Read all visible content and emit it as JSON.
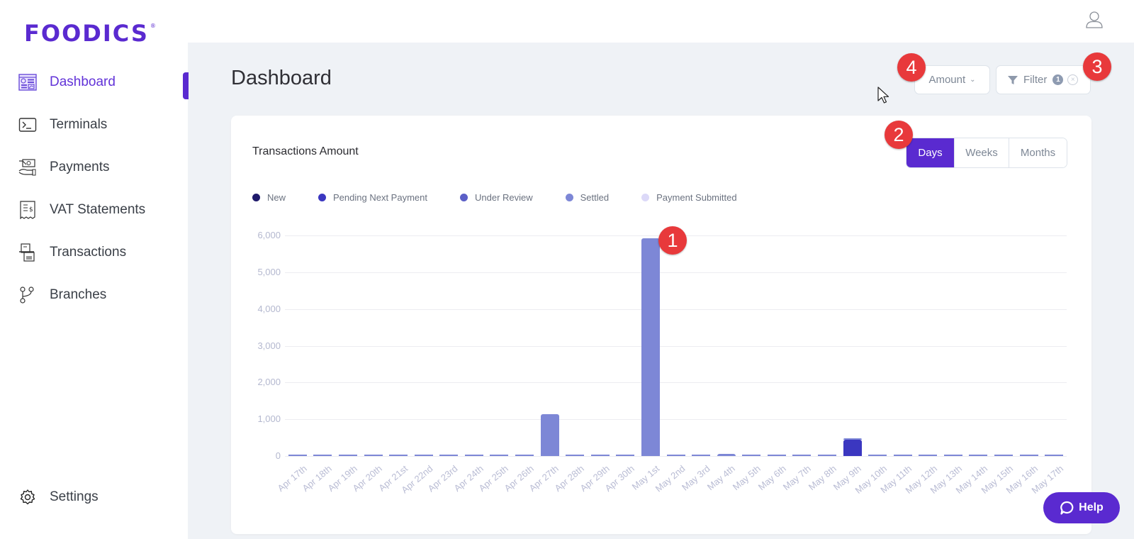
{
  "brand": {
    "name": "FOODICS",
    "mark": "®",
    "color": "#5a2ad0"
  },
  "sidebar": {
    "items": [
      {
        "label": "Dashboard",
        "icon": "dashboard-icon",
        "active": true
      },
      {
        "label": "Terminals",
        "icon": "terminal-icon"
      },
      {
        "label": "Payments",
        "icon": "payments-icon"
      },
      {
        "label": "VAT Statements",
        "icon": "receipt-icon"
      },
      {
        "label": "Transactions",
        "icon": "transactions-icon"
      },
      {
        "label": "Branches",
        "icon": "branches-icon"
      }
    ],
    "footer": {
      "label": "Settings",
      "icon": "gear-icon"
    }
  },
  "header": {
    "user_icon": "user-icon"
  },
  "page": {
    "title": "Dashboard"
  },
  "toolbar": {
    "amount_select": {
      "value": "Amount",
      "icon": "chevron-down-icon"
    },
    "filter": {
      "label": "Filter",
      "count": "1",
      "icon": "funnel-icon",
      "clear_icon": "close-circle-icon"
    }
  },
  "card": {
    "title": "Transactions Amount",
    "granularity": {
      "options": [
        "Days",
        "Weeks",
        "Months"
      ],
      "selected": "Days"
    },
    "legend": [
      {
        "label": "New",
        "color": "#1f1a6b"
      },
      {
        "label": "Pending Next Payment",
        "color": "#3b37c0"
      },
      {
        "label": "Under Review",
        "color": "#5b5fc7"
      },
      {
        "label": "Settled",
        "color": "#7d87d6"
      },
      {
        "label": "Payment Submitted",
        "color": "#dcd9f8"
      }
    ]
  },
  "chart_data": {
    "type": "bar",
    "title": "Transactions Amount",
    "xlabel": "",
    "ylabel": "",
    "ylim": [
      0,
      6000
    ],
    "yticks": [
      "0",
      "1,000",
      "2,000",
      "3,000",
      "4,000",
      "5,000",
      "6,000"
    ],
    "grid": true,
    "legend_position": "top-left",
    "stacked": true,
    "categories": [
      "Apr 17th",
      "Apr 18th",
      "Apr 19th",
      "Apr 20th",
      "Apr 21st",
      "Apr 22nd",
      "Apr 23rd",
      "Apr 24th",
      "Apr 25th",
      "Apr 26th",
      "Apr 27th",
      "Apr 28th",
      "Apr 29th",
      "Apr 30th",
      "May 1st",
      "May 2nd",
      "May 3rd",
      "May 4th",
      "May 5th",
      "May 6th",
      "May 7th",
      "May 8th",
      "May 9th",
      "May 10th",
      "May 11th",
      "May 12th",
      "May 13th",
      "May 14th",
      "May 15th",
      "May 16th",
      "May 17th"
    ],
    "series": [
      {
        "name": "New",
        "color": "#1f1a6b",
        "values": [
          0,
          0,
          0,
          0,
          0,
          0,
          0,
          0,
          0,
          0,
          0,
          0,
          0,
          0,
          0,
          0,
          0,
          0,
          0,
          0,
          0,
          0,
          0,
          0,
          0,
          0,
          0,
          0,
          0,
          0,
          0
        ]
      },
      {
        "name": "Pending Next Payment",
        "color": "#3b37c0",
        "values": [
          0,
          0,
          0,
          0,
          0,
          0,
          0,
          0,
          0,
          0,
          0,
          0,
          0,
          0,
          0,
          0,
          0,
          0,
          0,
          0,
          0,
          0,
          440,
          0,
          0,
          0,
          0,
          0,
          0,
          0,
          0
        ]
      },
      {
        "name": "Under Review",
        "color": "#5b5fc7",
        "values": [
          0,
          0,
          0,
          0,
          0,
          0,
          0,
          0,
          0,
          0,
          0,
          0,
          0,
          0,
          0,
          0,
          0,
          0,
          0,
          0,
          0,
          0,
          0,
          0,
          0,
          0,
          0,
          0,
          0,
          0,
          0
        ]
      },
      {
        "name": "Settled",
        "color": "#7d87d6",
        "values": [
          0,
          0,
          0,
          0,
          0,
          0,
          0,
          0,
          0,
          0,
          1140,
          0,
          0,
          0,
          5920,
          0,
          0,
          60,
          0,
          0,
          0,
          0,
          10,
          0,
          0,
          0,
          0,
          0,
          0,
          0,
          0
        ]
      },
      {
        "name": "Payment Submitted",
        "color": "#dcd9f8",
        "values": [
          0,
          0,
          0,
          0,
          0,
          0,
          0,
          0,
          0,
          0,
          0,
          0,
          0,
          0,
          0,
          0,
          0,
          0,
          0,
          0,
          0,
          0,
          0,
          0,
          0,
          0,
          0,
          0,
          0,
          0,
          0
        ]
      }
    ]
  },
  "annotations": [
    "1",
    "2",
    "3",
    "4"
  ],
  "help": {
    "label": "Help",
    "icon": "chat-icon"
  }
}
